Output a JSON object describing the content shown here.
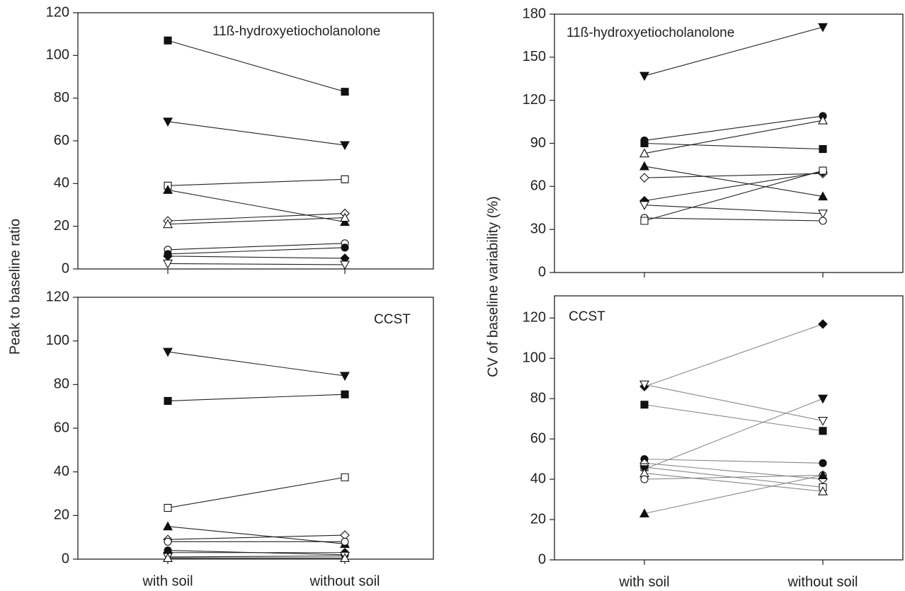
{
  "chart_data": [
    {
      "type": "line",
      "title": "11ß-hydroxyetiocholanolone",
      "ylabel": "Peak to baseline ratio",
      "categories": [
        null,
        null
      ],
      "ylim": [
        0,
        120
      ],
      "yticks": [
        0,
        20,
        40,
        60,
        80,
        100,
        120
      ],
      "line_color": "#222",
      "series": [
        {
          "marker": "square",
          "filled": true,
          "values": [
            107,
            83
          ]
        },
        {
          "marker": "triangle-down",
          "filled": true,
          "values": [
            69,
            58
          ]
        },
        {
          "marker": "square",
          "filled": false,
          "values": [
            39,
            42
          ]
        },
        {
          "marker": "triangle-up",
          "filled": true,
          "values": [
            37,
            22
          ]
        },
        {
          "marker": "diamond",
          "filled": false,
          "values": [
            22.5,
            26
          ]
        },
        {
          "marker": "triangle-up",
          "filled": false,
          "values": [
            21,
            24
          ]
        },
        {
          "marker": "circle",
          "filled": false,
          "values": [
            9,
            12
          ]
        },
        {
          "marker": "circle",
          "filled": true,
          "values": [
            7,
            10
          ]
        },
        {
          "marker": "diamond",
          "filled": true,
          "values": [
            6,
            5
          ]
        },
        {
          "marker": "triangle-down",
          "filled": false,
          "values": [
            2.5,
            2
          ]
        }
      ]
    },
    {
      "type": "line",
      "title": "CCST",
      "categories": [
        "with soil",
        "without soil"
      ],
      "ylim": [
        0,
        120
      ],
      "yticks": [
        0,
        20,
        40,
        60,
        80,
        100,
        120
      ],
      "line_color": "#222",
      "series": [
        {
          "marker": "triangle-down",
          "filled": true,
          "values": [
            95,
            84
          ]
        },
        {
          "marker": "square",
          "filled": true,
          "values": [
            72.5,
            75.5
          ]
        },
        {
          "marker": "square",
          "filled": false,
          "values": [
            23.5,
            37.5
          ]
        },
        {
          "marker": "triangle-up",
          "filled": true,
          "values": [
            15,
            7
          ]
        },
        {
          "marker": "diamond",
          "filled": false,
          "values": [
            9,
            11
          ]
        },
        {
          "marker": "circle",
          "filled": false,
          "values": [
            8,
            8
          ]
        },
        {
          "marker": "circle",
          "filled": true,
          "values": [
            4,
            2
          ]
        },
        {
          "marker": "diamond",
          "filled": true,
          "values": [
            3,
            3
          ]
        },
        {
          "marker": "triangle-down",
          "filled": false,
          "values": [
            1,
            1.5
          ]
        },
        {
          "marker": "triangle-up",
          "filled": false,
          "values": [
            0.5,
            0.5
          ]
        }
      ]
    },
    {
      "type": "line",
      "title": "11ß-hydroxyetiocholanolone",
      "ylabel": "CV of baseline variability (%)",
      "categories": [
        null,
        null
      ],
      "ylim": [
        0,
        180
      ],
      "yticks": [
        0,
        30,
        60,
        90,
        120,
        150,
        180
      ],
      "line_color": "#222",
      "series": [
        {
          "marker": "triangle-down",
          "filled": true,
          "values": [
            137,
            171
          ]
        },
        {
          "marker": "circle",
          "filled": true,
          "values": [
            92,
            109
          ]
        },
        {
          "marker": "square",
          "filled": true,
          "values": [
            90,
            86
          ]
        },
        {
          "marker": "triangle-up",
          "filled": false,
          "values": [
            83,
            106
          ]
        },
        {
          "marker": "triangle-up",
          "filled": true,
          "values": [
            74,
            53
          ]
        },
        {
          "marker": "diamond",
          "filled": false,
          "values": [
            66,
            69
          ]
        },
        {
          "marker": "diamond",
          "filled": true,
          "values": [
            50,
            70
          ]
        },
        {
          "marker": "triangle-down",
          "filled": false,
          "values": [
            47,
            41
          ]
        },
        {
          "marker": "circle",
          "filled": false,
          "values": [
            38,
            36
          ]
        },
        {
          "marker": "square",
          "filled": false,
          "values": [
            36,
            71
          ]
        }
      ]
    },
    {
      "type": "line",
      "title": "CCST",
      "categories": [
        "with soil",
        "without soil"
      ],
      "ylim": [
        0,
        131
      ],
      "yticks": [
        0,
        20,
        40,
        60,
        80,
        100,
        120
      ],
      "line_color": "#888",
      "series": [
        {
          "marker": "diamond",
          "filled": true,
          "values": [
            86,
            117
          ]
        },
        {
          "marker": "triangle-down",
          "filled": false,
          "values": [
            87,
            69
          ]
        },
        {
          "marker": "square",
          "filled": true,
          "values": [
            77,
            64
          ]
        },
        {
          "marker": "circle",
          "filled": true,
          "values": [
            50,
            48
          ]
        },
        {
          "marker": "diamond",
          "filled": false,
          "values": [
            48,
            40
          ]
        },
        {
          "marker": "square",
          "filled": false,
          "values": [
            46,
            36
          ]
        },
        {
          "marker": "triangle-down",
          "filled": true,
          "values": [
            45,
            80
          ]
        },
        {
          "marker": "triangle-up",
          "filled": false,
          "values": [
            43,
            34
          ]
        },
        {
          "marker": "circle",
          "filled": false,
          "values": [
            40,
            42
          ]
        },
        {
          "marker": "triangle-up",
          "filled": true,
          "values": [
            23,
            42
          ]
        }
      ]
    }
  ]
}
